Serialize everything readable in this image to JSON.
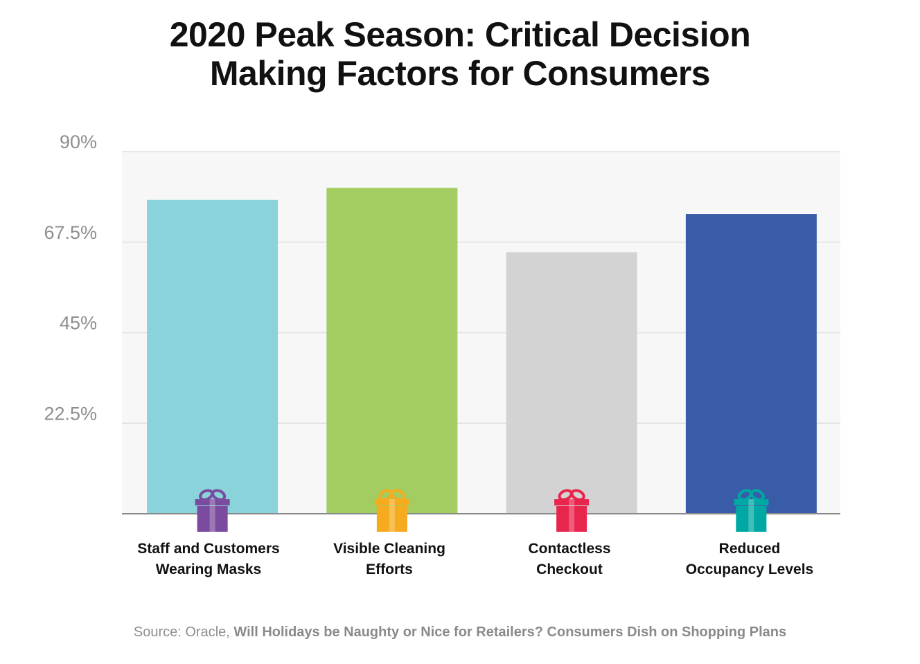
{
  "chart_data": {
    "type": "bar",
    "title_lines": [
      "2020 Peak Season: Critical Decision",
      "Making Factors for Consumers"
    ],
    "categories": [
      [
        "Staff and Customers",
        "Wearing Masks"
      ],
      [
        "Visible Cleaning",
        "Efforts"
      ],
      [
        "Contactless",
        "Checkout"
      ],
      [
        "Reduced",
        "Occupancy Levels"
      ]
    ],
    "values": [
      78,
      81,
      65,
      74.5
    ],
    "bar_colors": [
      "#8ad3da",
      "#a3cd60",
      "#d3d3d3",
      "#395ca8"
    ],
    "gift_icons": [
      "gift-icon",
      "gift-icon",
      "gift-icon",
      "gift-icon"
    ],
    "gift_colors": [
      "#7b4b9f",
      "#f6ab1f",
      "#e8264d",
      "#00a8a3"
    ],
    "yticks": [
      "22.5%",
      "45%",
      "67.5%",
      "90%"
    ],
    "ytick_values": [
      22.5,
      45,
      67.5,
      90
    ],
    "ylim": [
      0,
      90
    ],
    "grid": true,
    "xlabel": "",
    "ylabel": ""
  },
  "source": {
    "prefix": "Source: Oracle, ",
    "title": "Will Holidays be Naughty or Nice for Retailers? Consumers Dish on Shopping Plans"
  }
}
